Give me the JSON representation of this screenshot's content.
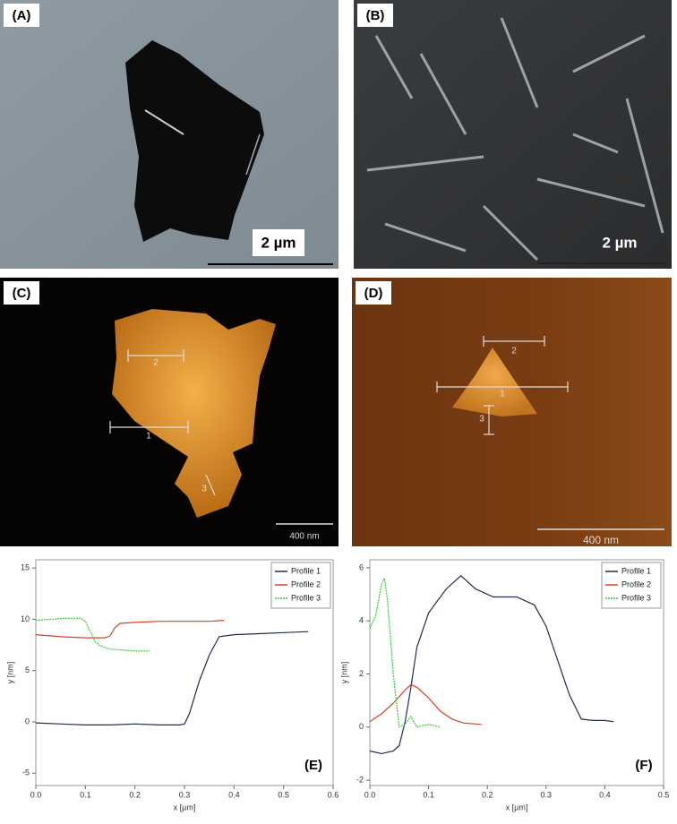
{
  "panels": [
    {
      "label": "(A)",
      "scale_bar": "2 µm"
    },
    {
      "label": "(B)",
      "scale_bar": "2 µm"
    },
    {
      "label": "(C)",
      "scale_bar": "400 nm",
      "markers": [
        "1",
        "2",
        "3"
      ]
    },
    {
      "label": "(D)",
      "scale_bar": "400 nm",
      "markers": [
        "1",
        "2",
        "3"
      ]
    }
  ],
  "chart_data": [
    {
      "type": "line",
      "panel_label": "(E)",
      "x_label": "x [µm]",
      "y_label": "y [nm]",
      "xlim": [
        0,
        0.6
      ],
      "xticks": [
        {
          "value": 0,
          "label": "0.0"
        },
        0.1,
        0.2,
        0.3,
        0.4,
        0.5,
        0.6
      ],
      "ylim": [
        -6.2,
        15.8
      ],
      "yticks": [
        -5,
        0,
        5,
        10,
        15
      ],
      "legend": "upper-right",
      "series": [
        {
          "name": "Profile 1",
          "color": "#1f2d4d",
          "x": [
            0,
            0.05,
            0.1,
            0.15,
            0.2,
            0.25,
            0.29,
            0.3,
            0.31,
            0.33,
            0.35,
            0.37,
            0.4,
            0.45,
            0.5,
            0.55
          ],
          "values": [
            -0.1,
            -0.2,
            -0.3,
            -0.3,
            -0.2,
            -0.3,
            -0.3,
            -0.2,
            0.8,
            4,
            6.5,
            8.3,
            8.5,
            8.6,
            8.7,
            8.8
          ]
        },
        {
          "name": "Profile 2",
          "color": "#d2451e",
          "x": [
            0,
            0.05,
            0.1,
            0.14,
            0.15,
            0.16,
            0.17,
            0.2,
            0.25,
            0.3,
            0.35,
            0.38
          ],
          "values": [
            8.5,
            8.3,
            8.2,
            8.2,
            8.4,
            9.2,
            9.6,
            9.7,
            9.8,
            9.8,
            9.8,
            9.9
          ]
        },
        {
          "name": "Profile 3",
          "color": "#33cc33",
          "x": [
            0,
            0.03,
            0.06,
            0.09,
            0.1,
            0.11,
            0.12,
            0.13,
            0.15,
            0.2,
            0.23
          ],
          "values": [
            9.9,
            10,
            10.1,
            10.1,
            9.8,
            8.8,
            7.8,
            7.4,
            7.1,
            6.9,
            6.9
          ]
        }
      ]
    },
    {
      "type": "line",
      "panel_label": "(F)",
      "x_label": "x [µm]",
      "y_label": "y [nm]",
      "xlim": [
        0,
        0.5
      ],
      "xticks": [
        {
          "value": 0,
          "label": "0.0"
        },
        0.1,
        0.2,
        0.3,
        0.4,
        0.5
      ],
      "ylim": [
        -2.2,
        6.3
      ],
      "yticks": [
        -2,
        0,
        2,
        4,
        6
      ],
      "legend": "upper-right",
      "series": [
        {
          "name": "Profile 1",
          "color": "#1f2d4d",
          "x": [
            0,
            0.02,
            0.04,
            0.05,
            0.06,
            0.07,
            0.08,
            0.1,
            0.13,
            0.155,
            0.18,
            0.21,
            0.25,
            0.28,
            0.3,
            0.32,
            0.34,
            0.36,
            0.38,
            0.4,
            0.415
          ],
          "values": [
            -0.9,
            -1,
            -0.9,
            -0.7,
            0.2,
            1.5,
            3,
            4.3,
            5.2,
            5.7,
            5.2,
            4.9,
            4.9,
            4.6,
            3.8,
            2.5,
            1.2,
            0.3,
            0.25,
            0.25,
            0.2
          ]
        },
        {
          "name": "Profile 2",
          "color": "#d2451e",
          "x": [
            0,
            0.02,
            0.04,
            0.06,
            0.07,
            0.08,
            0.1,
            0.12,
            0.14,
            0.16,
            0.19
          ],
          "values": [
            0.2,
            0.5,
            0.9,
            1.4,
            1.6,
            1.5,
            1.1,
            0.6,
            0.3,
            0.15,
            0.1
          ]
        },
        {
          "name": "Profile 3",
          "color": "#33cc33",
          "x": [
            0,
            0.01,
            0.02,
            0.025,
            0.03,
            0.04,
            0.05,
            0.06,
            0.07,
            0.08,
            0.1,
            0.12
          ],
          "values": [
            3.7,
            4.2,
            5.4,
            5.6,
            4.8,
            2,
            0,
            0.1,
            0.4,
            0,
            0.1,
            0
          ]
        }
      ]
    }
  ]
}
